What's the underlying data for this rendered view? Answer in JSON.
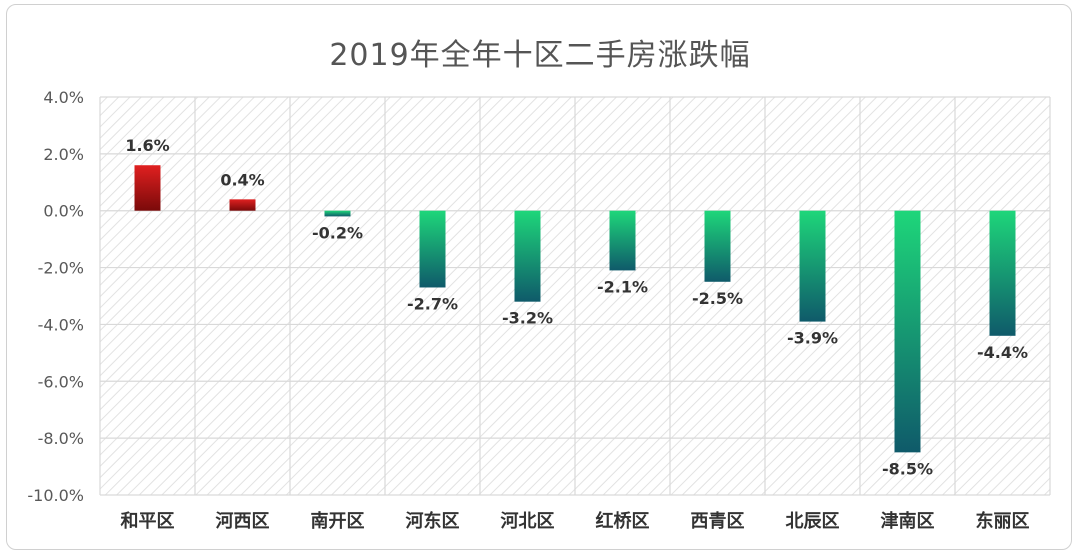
{
  "chart_data": {
    "type": "bar",
    "title": "2019年全年十区二手房涨跌幅",
    "xlabel": "",
    "ylabel": "",
    "ylim": [
      -10,
      4
    ],
    "ytick_step": 2,
    "ytick_format": "percent_1dp",
    "grid": true,
    "legend": "none",
    "categories": [
      "和平区",
      "河西区",
      "南开区",
      "河东区",
      "河北区",
      "红桥区",
      "西青区",
      "北辰区",
      "津南区",
      "东丽区"
    ],
    "values": [
      1.6,
      0.4,
      -0.2,
      -2.7,
      -3.2,
      -2.1,
      -2.5,
      -3.9,
      -8.5,
      -4.4
    ],
    "data_labels": [
      "1.6%",
      "0.4%",
      "-0.2%",
      "-2.7%",
      "-3.2%",
      "-2.1%",
      "-2.5%",
      "-3.9%",
      "-8.5%",
      "-4.4%"
    ],
    "colors": {
      "positive_top": "#e02020",
      "positive_bottom": "#7a0a0a",
      "negative_top": "#1ed67a",
      "negative_bottom": "#0f5a6a",
      "grid": "#d9d9d9",
      "hatch": "#e4e4e4"
    }
  }
}
